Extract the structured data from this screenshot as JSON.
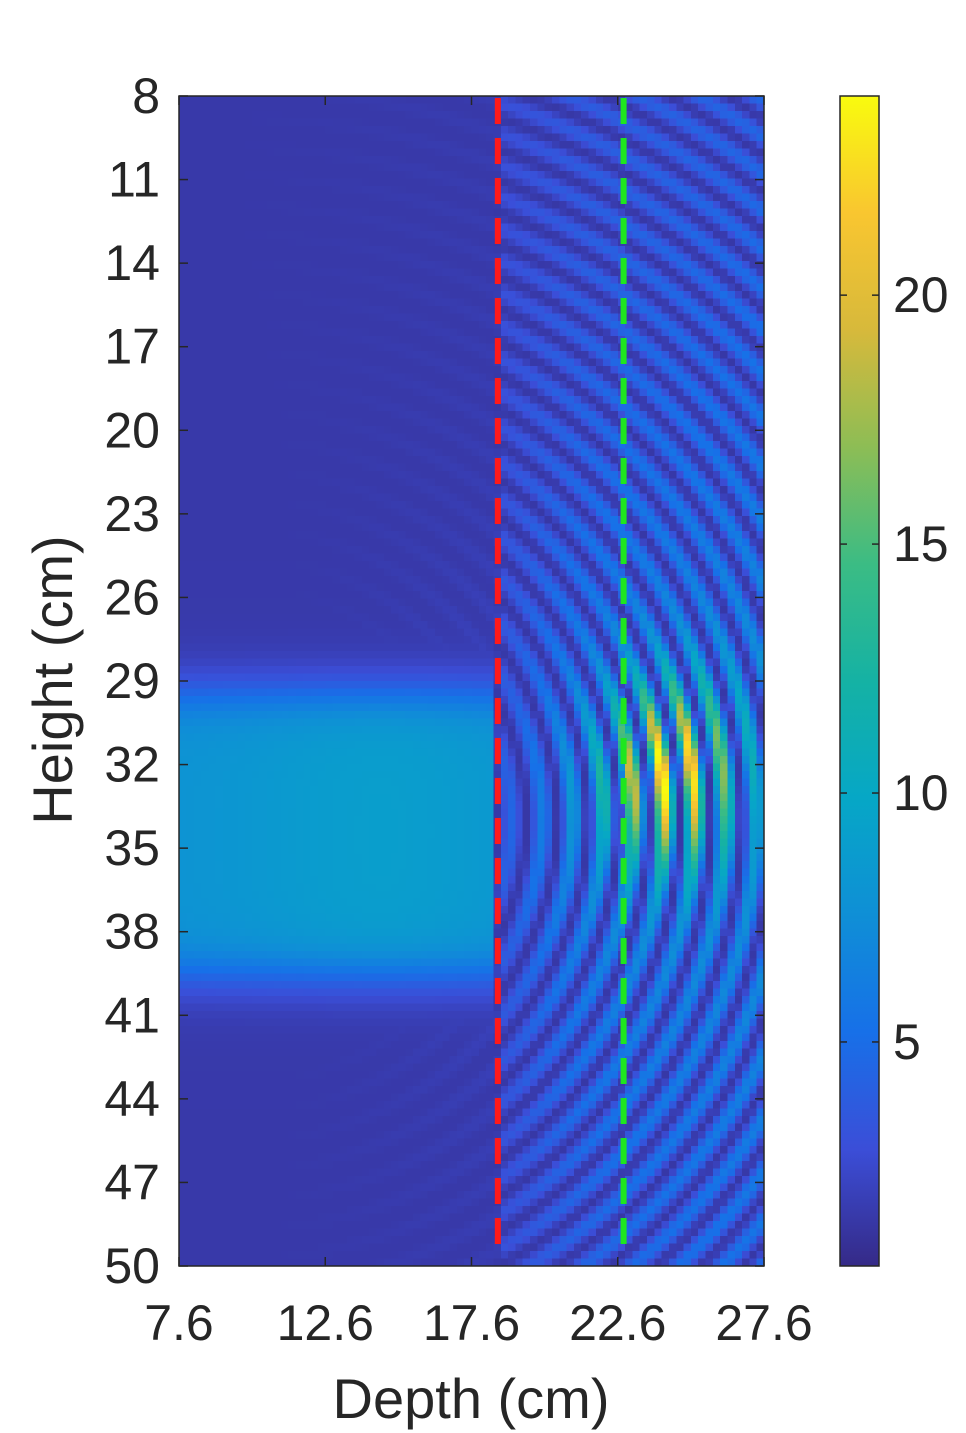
{
  "chart_data": {
    "type": "heatmap",
    "title": "",
    "xlabel": "Depth (cm)",
    "ylabel": "Height (cm)",
    "xlim": [
      7.6,
      27.6
    ],
    "ylim": [
      8,
      50
    ],
    "y_direction": "reversed",
    "xticks": [
      7.6,
      12.6,
      17.6,
      22.6,
      27.6
    ],
    "xtick_labels": [
      "7.6",
      "12.6",
      "17.6",
      "22.6",
      "27.6"
    ],
    "yticks": [
      8,
      11,
      14,
      17,
      20,
      23,
      26,
      29,
      32,
      35,
      38,
      41,
      44,
      47,
      50
    ],
    "ytick_labels": [
      "8",
      "11",
      "14",
      "17",
      "20",
      "23",
      "26",
      "29",
      "32",
      "35",
      "38",
      "41",
      "44",
      "47",
      "50"
    ],
    "colormap": "parula",
    "colorbar": {
      "range": [
        0.5,
        24
      ],
      "ticks": [
        5,
        10,
        15,
        20
      ],
      "tick_labels": [
        "5",
        "10",
        "15",
        "20"
      ]
    },
    "features": {
      "wave_source_center": {
        "x": 9.5,
        "y": 34
      },
      "bright_band": {
        "y_range": [
          29.5,
          39.5
        ],
        "x_max": 18.4,
        "value": 9
      },
      "arc_wavelength": 1.05,
      "peak_region": {
        "x": 24.4,
        "y": 32.3,
        "value": 24
      }
    },
    "reference_lines": [
      {
        "x": 18.5,
        "color": "#ff1a1a",
        "style": "dashed"
      },
      {
        "x": 22.8,
        "color": "#1fe61f",
        "style": "dashed"
      }
    ]
  }
}
